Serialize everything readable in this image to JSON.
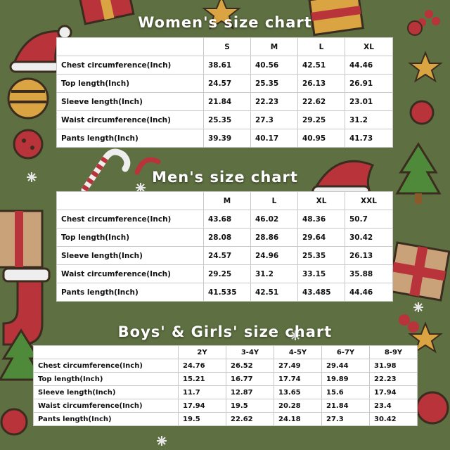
{
  "charts": [
    {
      "title": "Women's size chart",
      "sizes": [
        "S",
        "M",
        "L",
        "XL"
      ],
      "rows": [
        {
          "label": "Chest circumference(Inch)",
          "values": [
            "38.61",
            "40.56",
            "42.51",
            "44.46"
          ]
        },
        {
          "label": "Top length(Inch)",
          "values": [
            "24.57",
            "25.35",
            "26.13",
            "26.91"
          ]
        },
        {
          "label": "Sleeve length(Inch)",
          "values": [
            "21.84",
            "22.23",
            "22.62",
            "23.01"
          ]
        },
        {
          "label": "Waist circumference(Inch)",
          "values": [
            "25.35",
            "27.3",
            "29.25",
            "31.2"
          ]
        },
        {
          "label": "Pants length(Inch)",
          "values": [
            "39.39",
            "40.17",
            "40.95",
            "41.73"
          ]
        }
      ]
    },
    {
      "title": "Men's size chart",
      "sizes": [
        "M",
        "L",
        "XL",
        "XXL"
      ],
      "rows": [
        {
          "label": "Chest circumference(Inch)",
          "values": [
            "43.68",
            "46.02",
            "48.36",
            "50.7"
          ]
        },
        {
          "label": "Top length(Inch)",
          "values": [
            "28.08",
            "28.86",
            "29.64",
            "30.42"
          ]
        },
        {
          "label": "Sleeve length(Inch)",
          "values": [
            "24.57",
            "24.96",
            "25.35",
            "26.13"
          ]
        },
        {
          "label": "Waist circumference(Inch)",
          "values": [
            "29.25",
            "31.2",
            "33.15",
            "35.88"
          ]
        },
        {
          "label": "Pants length(Inch)",
          "values": [
            "41.535",
            "42.51",
            "43.485",
            "44.46"
          ]
        }
      ]
    },
    {
      "title": "Boys' & Girls' size chart",
      "sizes": [
        "2Y",
        "3-4Y",
        "4-5Y",
        "6-7Y",
        "8-9Y"
      ],
      "rows": [
        {
          "label": "Chest circumference(Inch)",
          "values": [
            "24.76",
            "26.52",
            "27.49",
            "29.44",
            "31.98"
          ]
        },
        {
          "label": "Top length(Inch)",
          "values": [
            "15.21",
            "16.77",
            "17.74",
            "19.89",
            "22.23"
          ]
        },
        {
          "label": "Sleeve length(Inch)",
          "values": [
            "11.7",
            "12.87",
            "13.65",
            "15.6",
            "17.94"
          ]
        },
        {
          "label": "Waist circumference(Inch)",
          "values": [
            "17.94",
            "19.5",
            "20.28",
            "21.84",
            "23.4"
          ]
        },
        {
          "label": "Pants length(Inch)",
          "values": [
            "19.5",
            "22.62",
            "24.18",
            "27.3",
            "30.42"
          ]
        }
      ]
    }
  ],
  "colors": {
    "background": "#5e6f41",
    "accent_red": "#b8343a",
    "accent_gold": "#d9a441",
    "accent_tan": "#c9a27a",
    "title_text": "#ffffff"
  },
  "decor_icons": [
    "christmas-tree-icon",
    "santa-hat-icon",
    "gift-box-icon",
    "candy-cane-icon",
    "ornament-icon",
    "star-icon",
    "snowflake-icon",
    "stocking-icon",
    "holly-icon"
  ]
}
